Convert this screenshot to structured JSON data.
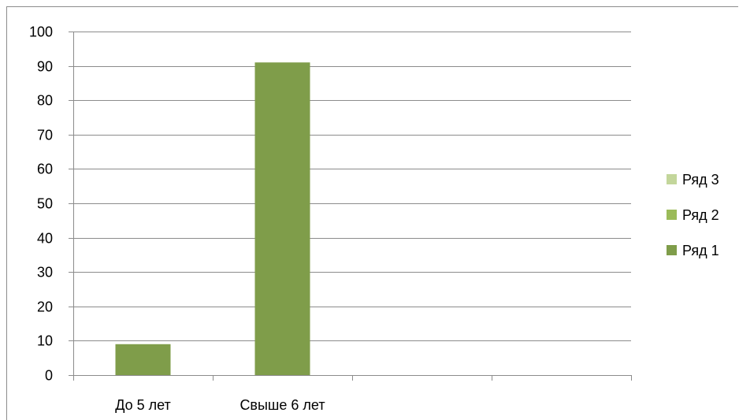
{
  "chart_data": {
    "type": "bar",
    "categories": [
      "До 5 лет",
      "Свыше 6 лет",
      "",
      ""
    ],
    "series": [
      {
        "name": "Ряд 1",
        "values": [
          9,
          91,
          null,
          null
        ],
        "color": "#7f9d4a"
      },
      {
        "name": "Ряд 2",
        "values": [
          null,
          null,
          null,
          null
        ],
        "color": "#9bbb59"
      },
      {
        "name": "Ряд 3",
        "values": [
          null,
          null,
          null,
          null
        ],
        "color": "#c3d69b"
      }
    ],
    "ylim": [
      0,
      100
    ],
    "yticks": [
      0,
      10,
      20,
      30,
      40,
      50,
      60,
      70,
      80,
      90,
      100
    ],
    "grid": true,
    "legend_position": "right",
    "legend_order": [
      "Ряд 3",
      "Ряд 2",
      "Ряд 1"
    ]
  },
  "colors": {
    "gridline": "#8c8c8c",
    "axis": "#8c8c8c",
    "border": "#8c8c8c"
  }
}
